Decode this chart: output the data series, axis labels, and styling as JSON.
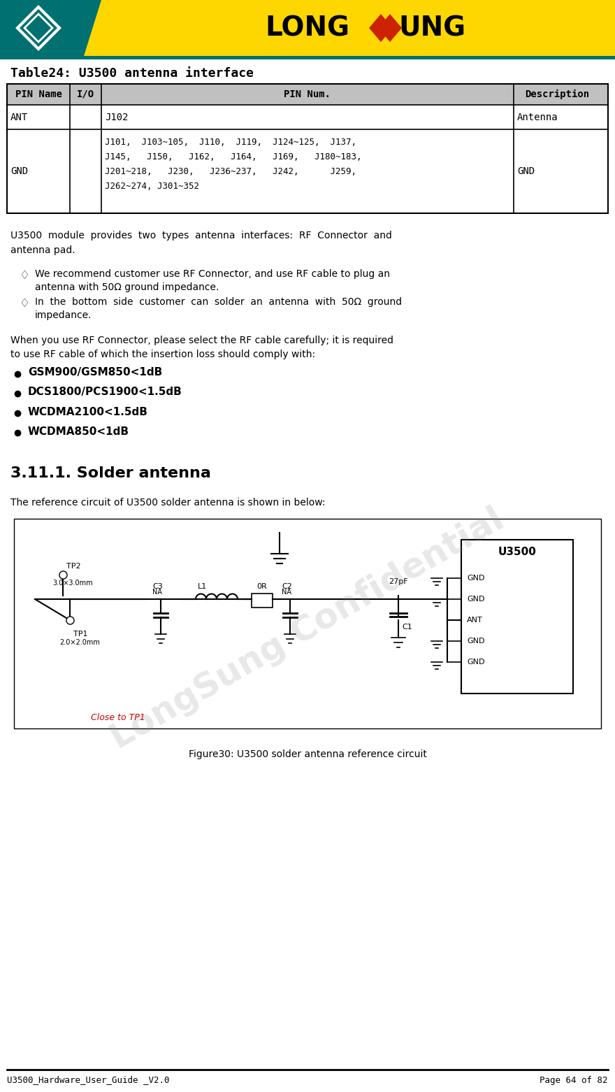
{
  "header_bg": "#FFD700",
  "header_teal": "#008080",
  "page_bg": "#FFFFFF",
  "table_header_bg": "#C0C0C0",
  "table_border": "#000000",
  "title_text": "Table24: U3500 antenna interface",
  "table_headers": [
    "PIN Name",
    "I/O",
    "PIN Num.",
    "Description"
  ],
  "table_row1": [
    "ANT",
    "",
    "J102",
    "Antenna"
  ],
  "table_row2_col0": "GND",
  "table_row2_col1": "",
  "table_row2_col2": "J101,  J103~105,  J110,  J119,  J124~125,  J137,\nJ145,   J150,   J162,   J164,   J169,   J180~183,\nJ201~218,   J230,   J236~237,   J242,      J259,\nJ262~274, J301~352",
  "table_row2_col3": "GND",
  "body_text1": "U3500  module  provides  two  types  antenna  interfaces:  RF  Connector  and\nantenna pad.",
  "bullet_diamond": "♢",
  "bullet1": "We recommend customer use RF Connector, and use RF cable to plug an\nantenna with 50Ω ground impedance.",
  "bullet2": "In  the  bottom  side  customer  can  solder  an  antenna  with  50Ω  ground\nimpedance.",
  "body_text2": "When you use RF Connector, please select the RF cable carefully; it is required\nto use RF cable of which the insertion loss should comply with:",
  "bullets_circle": [
    "GSM900/GSM850<1dB",
    "DCS1800/PCS1900<1.5dB",
    "WCDMA2100<1.5dB",
    "WCDMA850<1dB"
  ],
  "section_title": "3.11.1. Solder antenna",
  "body_text3": "The reference circuit of U3500 solder antenna is shown in below:",
  "figure_caption": "Figure30: U3500 solder antenna reference circuit",
  "footer_left": "U3500_Hardware_User_Guide _V2.0",
  "footer_right": "Page 64 of 82",
  "watermark_text": "LongSung Confidential",
  "logo_text_long": "LONG",
  "logo_text_sung": "UNG",
  "teal_color": "#007070",
  "yellow_color": "#FFD700",
  "red_color": "#CC0000"
}
